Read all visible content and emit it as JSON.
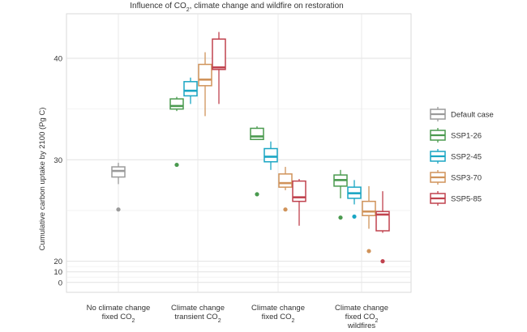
{
  "chart_data": {
    "type": "boxplot",
    "title": "Influence of CO₂, climate change and wildfire on restoration",
    "ylabel": "Cumulative carbon uptake by 2100 (Pg C)",
    "y_tick_labels": [
      "0",
      "10",
      "20",
      "30",
      "40"
    ],
    "grid": true,
    "legend_position": "right",
    "categories": [
      {
        "lines": [
          "No climate change",
          "fixed CO₂"
        ]
      },
      {
        "lines": [
          "Climate change",
          "transient CO₂"
        ]
      },
      {
        "lines": [
          "Climate change",
          "fixed CO₂"
        ]
      },
      {
        "lines": [
          "Climate change",
          "fixed CO₂",
          "wildfires"
        ]
      }
    ],
    "series": [
      {
        "name": "Default case",
        "color": "#9a9a9a"
      },
      {
        "name": "SSP1-26",
        "color": "#4a9a4f"
      },
      {
        "name": "SSP2-45",
        "color": "#1aa6c4"
      },
      {
        "name": "SSP3-70",
        "color": "#d0935a"
      },
      {
        "name": "SSP5-85",
        "color": "#c0424e"
      }
    ],
    "boxes": [
      {
        "category": 0,
        "series": 0,
        "whisker_low": 27.6,
        "q1": 28.3,
        "median": 28.9,
        "q3": 29.3,
        "whisker_high": 29.7,
        "outliers": [
          25.1
        ]
      },
      {
        "category": 1,
        "series": 1,
        "whisker_low": 34.8,
        "q1": 35.0,
        "median": 35.3,
        "q3": 36.0,
        "whisker_high": 36.2,
        "outliers": [
          29.5
        ]
      },
      {
        "category": 1,
        "series": 2,
        "whisker_low": 35.5,
        "q1": 36.3,
        "median": 36.8,
        "q3": 37.7,
        "whisker_high": 38.1,
        "outliers": []
      },
      {
        "category": 1,
        "series": 3,
        "whisker_low": 34.3,
        "q1": 37.3,
        "median": 37.9,
        "q3": 39.4,
        "whisker_high": 40.6,
        "outliers": []
      },
      {
        "category": 1,
        "series": 4,
        "whisker_low": 35.5,
        "q1": 38.9,
        "median": 39.1,
        "q3": 41.9,
        "whisker_high": 42.6,
        "outliers": []
      },
      {
        "category": 2,
        "series": 1,
        "whisker_low": 32.0,
        "q1": 32.0,
        "median": 32.3,
        "q3": 33.1,
        "whisker_high": 33.3,
        "outliers": [
          26.6
        ]
      },
      {
        "category": 2,
        "series": 2,
        "whisker_low": 29.0,
        "q1": 29.8,
        "median": 30.3,
        "q3": 31.1,
        "whisker_high": 31.8,
        "outliers": []
      },
      {
        "category": 2,
        "series": 3,
        "whisker_low": 27.0,
        "q1": 27.3,
        "median": 27.7,
        "q3": 28.6,
        "whisker_high": 29.3,
        "outliers": [
          25.1
        ]
      },
      {
        "category": 2,
        "series": 4,
        "whisker_low": 23.5,
        "q1": 25.9,
        "median": 26.3,
        "q3": 27.9,
        "whisker_high": 28.1,
        "outliers": []
      },
      {
        "category": 3,
        "series": 1,
        "whisker_low": 26.2,
        "q1": 27.4,
        "median": 28.0,
        "q3": 28.5,
        "whisker_high": 29.0,
        "outliers": [
          24.3
        ]
      },
      {
        "category": 3,
        "series": 2,
        "whisker_low": 25.6,
        "q1": 26.2,
        "median": 26.7,
        "q3": 27.3,
        "whisker_high": 28.0,
        "outliers": [
          24.4
        ]
      },
      {
        "category": 3,
        "series": 3,
        "whisker_low": 23.2,
        "q1": 24.5,
        "median": 24.9,
        "q3": 25.9,
        "whisker_high": 27.4,
        "outliers": [
          21.0
        ]
      },
      {
        "category": 3,
        "series": 4,
        "whisker_low": 22.8,
        "q1": 23.0,
        "median": 24.6,
        "q3": 24.9,
        "whisker_high": 26.9,
        "outliers": [
          20.0
        ]
      }
    ]
  }
}
